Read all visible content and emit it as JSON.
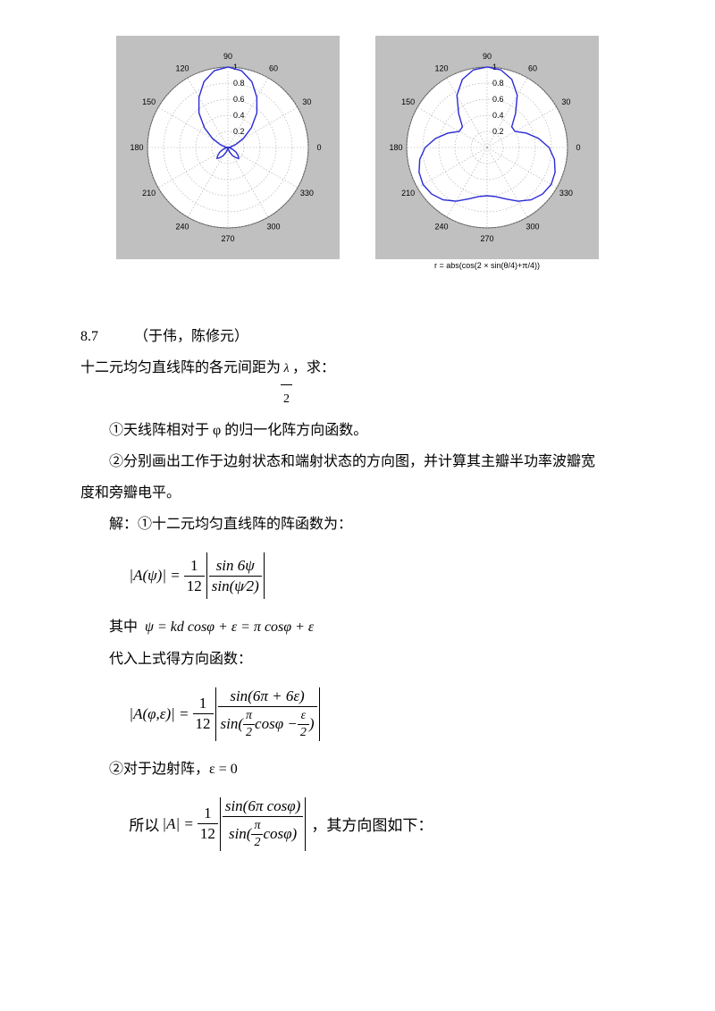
{
  "charts": {
    "polar1": {
      "type": "polar",
      "background_color": "#c0c0c0",
      "plot_bg": "#ffffff",
      "grid_color": "#a8a8a8",
      "spoke_color": "#a8a8a8",
      "line_color": "#2b2bd6",
      "tick_fontsize": 9,
      "tick_color": "#000000",
      "angles": [
        0,
        30,
        60,
        90,
        120,
        150,
        180,
        210,
        240,
        270,
        300,
        330
      ],
      "angle_labels": [
        "0",
        "30",
        "60",
        "90",
        "120",
        "150",
        "180",
        "210",
        "240",
        "270",
        "300",
        "330"
      ],
      "r_ticks": [
        0.2,
        0.4,
        0.6,
        0.8,
        1.0
      ],
      "r_labels": [
        "0.2",
        "0.4",
        "0.6",
        "0.8",
        "1"
      ],
      "pattern_theta_deg": [
        0,
        10,
        20,
        30,
        40,
        50,
        60,
        70,
        80,
        90,
        100,
        110,
        120,
        130,
        140,
        150,
        160,
        170,
        180,
        190,
        200,
        210,
        220,
        225,
        230,
        240,
        250,
        260,
        270,
        280,
        290,
        300,
        310,
        315,
        320,
        330,
        340,
        350,
        360
      ],
      "pattern_r": [
        0,
        0.03,
        0.1,
        0.22,
        0.38,
        0.56,
        0.72,
        0.87,
        0.97,
        1.0,
        0.97,
        0.87,
        0.72,
        0.56,
        0.38,
        0.22,
        0.1,
        0.03,
        0,
        0.02,
        0.06,
        0.12,
        0.17,
        0.19,
        0.17,
        0.12,
        0.06,
        0.02,
        0,
        0.02,
        0.06,
        0.12,
        0.17,
        0.19,
        0.17,
        0.12,
        0.06,
        0.02,
        0
      ]
    },
    "polar2": {
      "type": "polar",
      "background_color": "#c0c0c0",
      "plot_bg": "#ffffff",
      "grid_color": "#a8a8a8",
      "spoke_color": "#a8a8a8",
      "line_color": "#2b2bd6",
      "tick_fontsize": 9,
      "tick_color": "#000000",
      "caption": "r = abs(cos(2 × sin(θ/4)+π/4))",
      "angles": [
        0,
        30,
        60,
        90,
        120,
        150,
        180,
        210,
        240,
        270,
        300,
        330
      ],
      "angle_labels": [
        "0",
        "30",
        "60",
        "90",
        "120",
        "150",
        "180",
        "210",
        "240",
        "270",
        "300",
        "330"
      ],
      "r_ticks": [
        0.2,
        0.4,
        0.6,
        0.8,
        1.0
      ],
      "r_labels": [
        "0.2",
        "0.4",
        "0.6",
        "0.8",
        "1"
      ],
      "pattern_theta_deg": [
        0,
        10,
        20,
        30,
        40,
        50,
        60,
        70,
        80,
        90,
        100,
        110,
        120,
        130,
        140,
        150,
        160,
        170,
        180,
        190,
        200,
        210,
        220,
        230,
        240,
        250,
        260,
        270,
        280,
        290,
        300,
        310,
        320,
        330,
        340,
        350,
        360
      ],
      "pattern_r": [
        0.77,
        0.65,
        0.52,
        0.4,
        0.4,
        0.55,
        0.75,
        0.9,
        0.98,
        1.0,
        0.98,
        0.9,
        0.75,
        0.55,
        0.4,
        0.4,
        0.52,
        0.65,
        0.77,
        0.85,
        0.9,
        0.92,
        0.9,
        0.85,
        0.77,
        0.68,
        0.62,
        0.6,
        0.62,
        0.68,
        0.77,
        0.85,
        0.9,
        0.92,
        0.9,
        0.85,
        0.77
      ]
    }
  },
  "text": {
    "problem_num": "8.7",
    "authors": "（于伟，陈修元）",
    "line1a": "十二元均匀直线阵的各元间距为",
    "line1b": "，求：",
    "line2": "①天线阵相对于 φ 的归一化阵方向函数。",
    "line3": "②分别画出工作于边射状态和端射状态的方向图，并计算其主瓣半功率波瓣宽",
    "line3b": "度和旁瓣电平。",
    "line4": "解：①十二元均匀直线阵的阵函数为：",
    "line5a": "其中",
    "line5b": "ψ = kd cosφ + ε = π cosφ + ε",
    "line6": "代入上式得方向函数：",
    "line7": "②对于边射阵，ε = 0",
    "line8a": "所以",
    "line8b": "，其方向图如下：",
    "eq1_lhs": "|A(ψ)| =",
    "eq1_f1n": "1",
    "eq1_f1d": "12",
    "eq1_f2n": "sin 6ψ",
    "eq1_f2d": "sin(ψ⁄2)",
    "eq2_lhs": "|A(φ,ε)| =",
    "eq2_f1n": "1",
    "eq2_f1d": "12",
    "eq2_f2n": "sin(6π + 6ε)",
    "eq2_f2d_a": "sin(",
    "eq2_f2d_b": "cosφ −",
    "eq2_f2d_c": ")",
    "eq3_lhs": "|A| =",
    "eq3_f1n": "1",
    "eq3_f1d": "12",
    "eq3_f2n": "sin(6π cosφ)",
    "eq3_f2d_a": "sin(",
    "eq3_f2d_b": "cosφ)",
    "frac_lambda_n": "λ",
    "frac_lambda_d": "2",
    "frac_pi2_n": "π",
    "frac_pi2_d": "2",
    "frac_eps2_n": "ε",
    "frac_eps2_d": "2"
  }
}
